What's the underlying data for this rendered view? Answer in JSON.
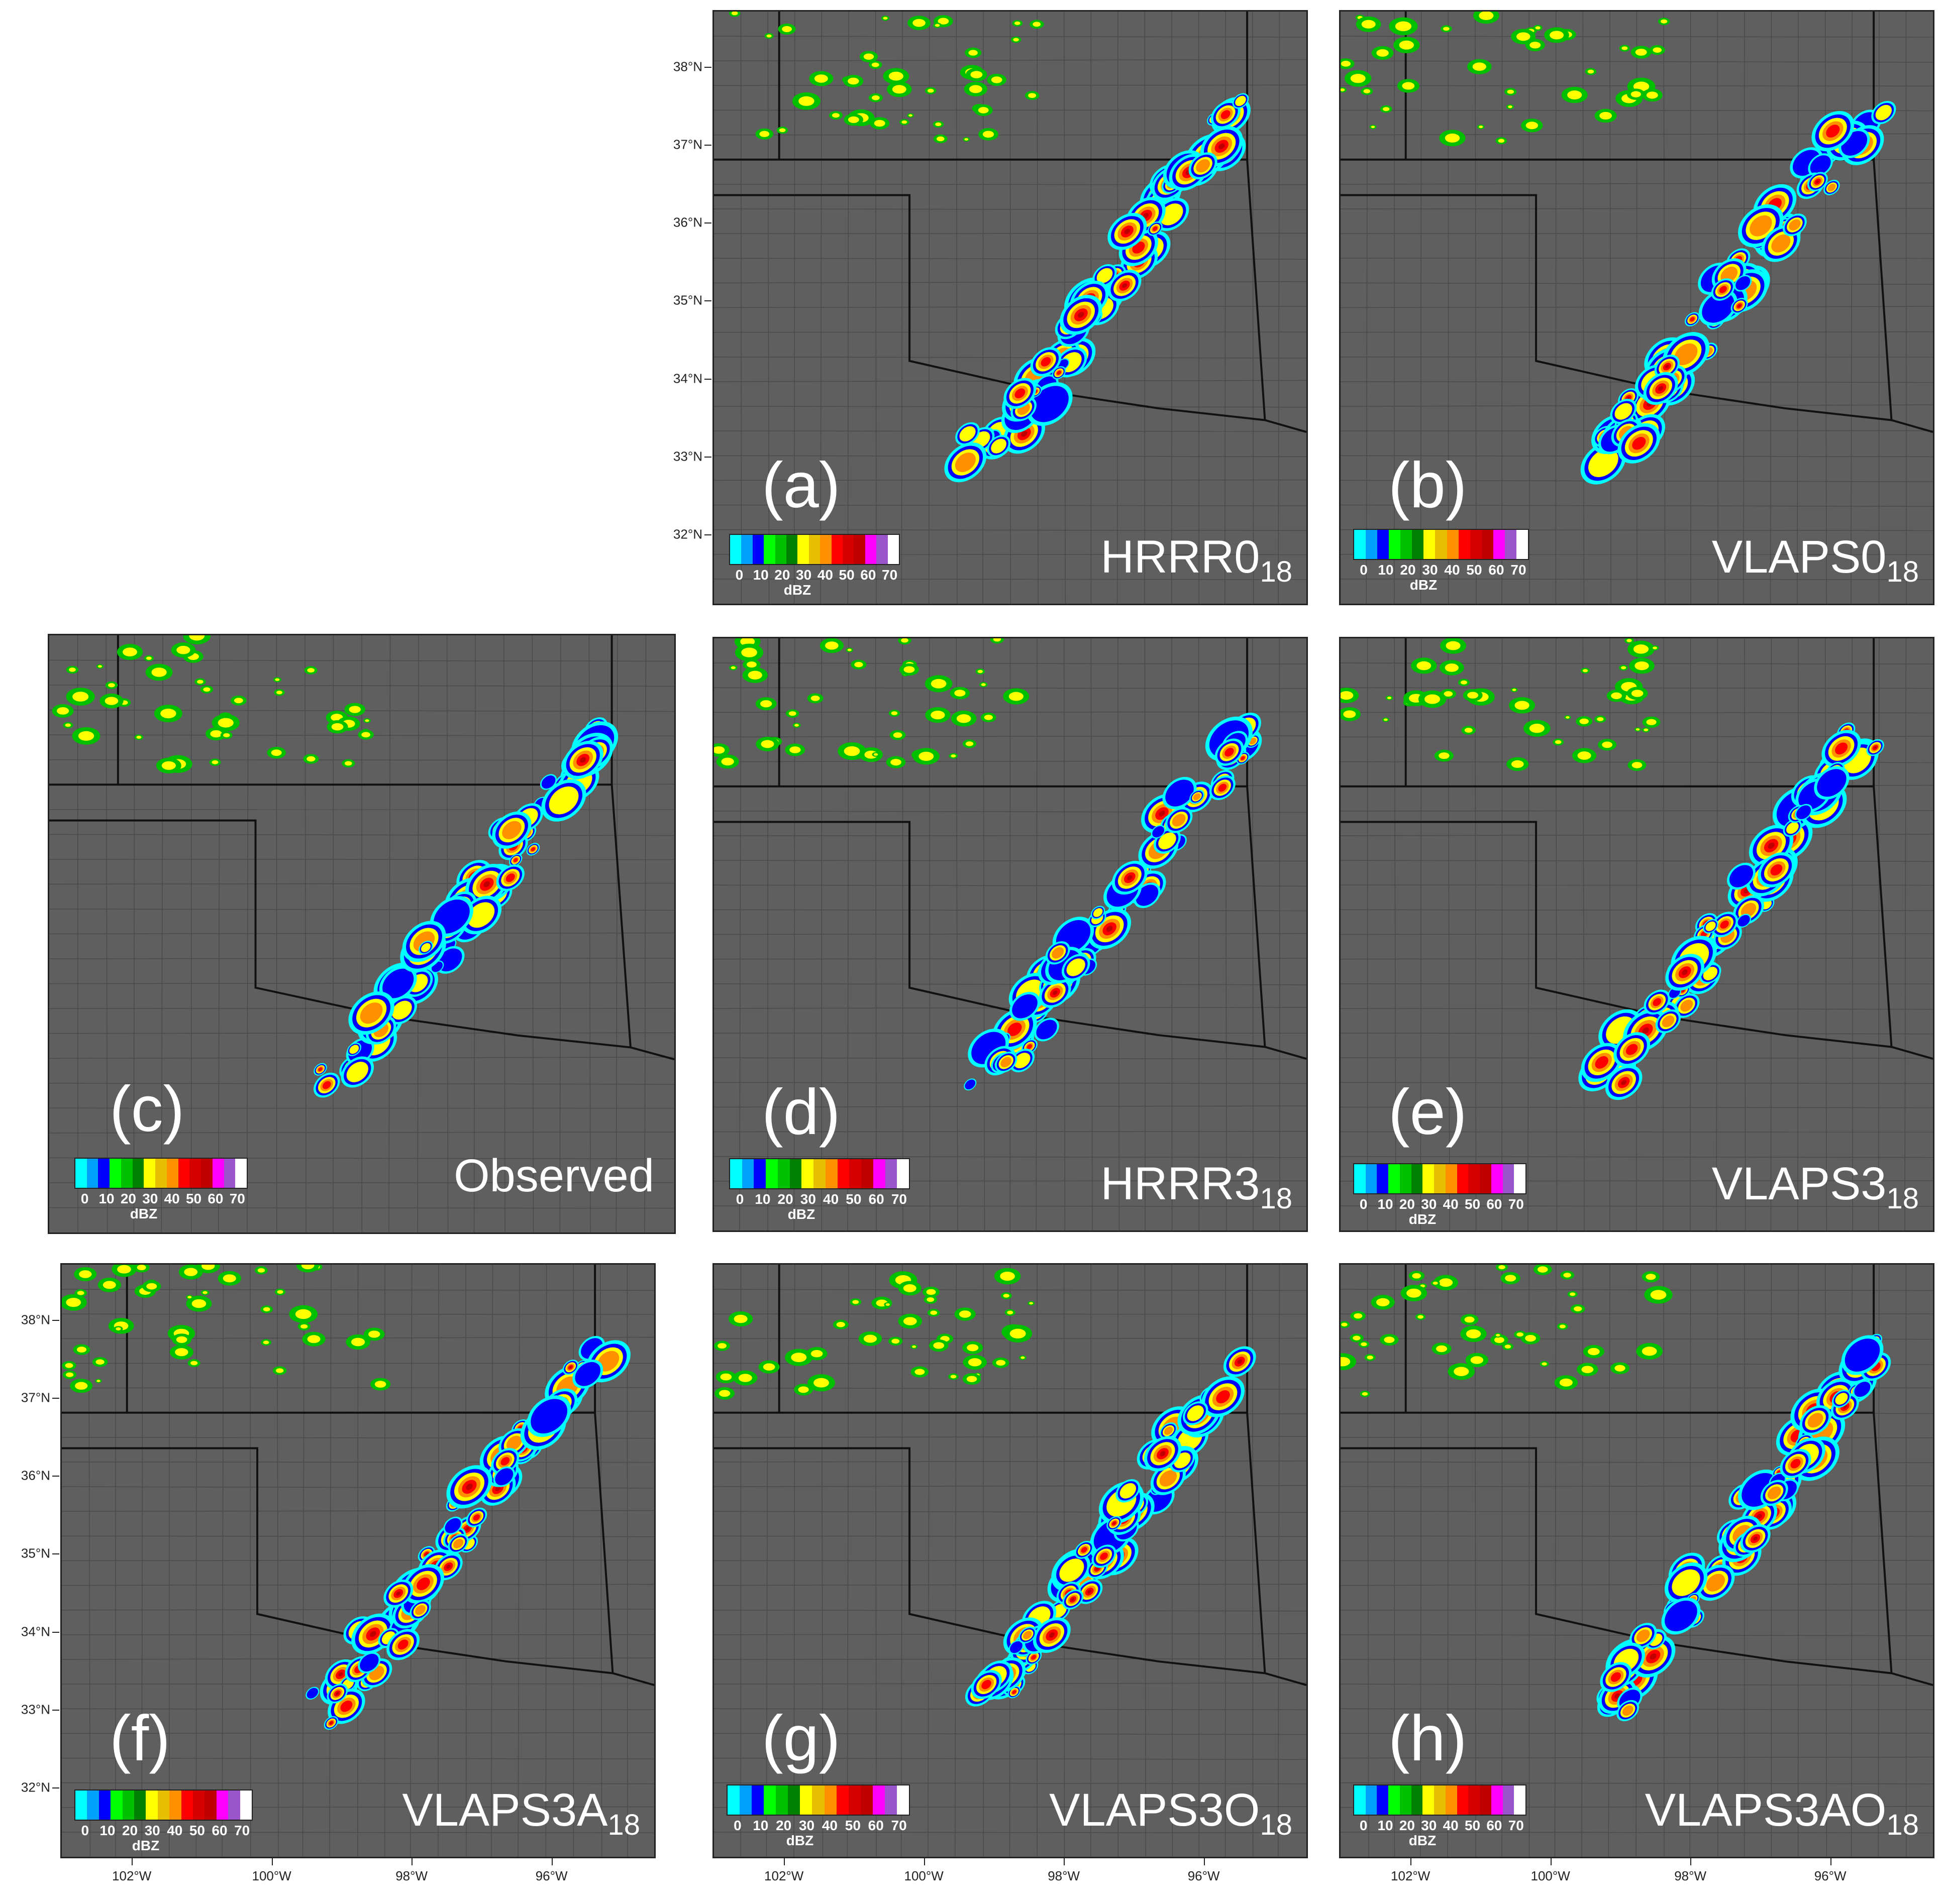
{
  "colors": {
    "background": "#5f5f5f",
    "state_lines": "#111111",
    "county_lines": "#4a4a4a",
    "reflectivity": [
      "#00ffff",
      "#00a0ff",
      "#0000ff",
      "#00ff00",
      "#00c000",
      "#008000",
      "#ffff00",
      "#e6c000",
      "#ff9000",
      "#ff0000",
      "#d60000",
      "#c00000",
      "#ff00ff",
      "#9955c9",
      "#ffffff"
    ]
  },
  "colorbar": {
    "ticks": [
      "0",
      "10",
      "20",
      "30",
      "40",
      "50",
      "60",
      "70"
    ],
    "unit": "dBZ"
  },
  "axes": {
    "lat_labels": [
      "38°N",
      "37°N",
      "36°N",
      "35°N",
      "34°N",
      "33°N",
      "32°N"
    ],
    "lon_labels": [
      "102°W",
      "100°W",
      "98°W",
      "96°W"
    ]
  },
  "panels": [
    {
      "id": "a",
      "letter": "(a)",
      "name": "HRRR0",
      "sub": "18"
    },
    {
      "id": "b",
      "letter": "(b)",
      "name": "VLAPS0",
      "sub": "18"
    },
    {
      "id": "c",
      "letter": "(c)",
      "name": "Observed",
      "sub": ""
    },
    {
      "id": "d",
      "letter": "(d)",
      "name": "HRRR3",
      "sub": "18"
    },
    {
      "id": "e",
      "letter": "(e)",
      "name": "VLAPS3",
      "sub": "18"
    },
    {
      "id": "f",
      "letter": "(f)",
      "name": "VLAPS3A",
      "sub": "18"
    },
    {
      "id": "g",
      "letter": "(g)",
      "name": "VLAPS3O",
      "sub": "18"
    },
    {
      "id": "h",
      "letter": "(h)",
      "name": "VLAPS3AO",
      "sub": "18"
    }
  ]
}
